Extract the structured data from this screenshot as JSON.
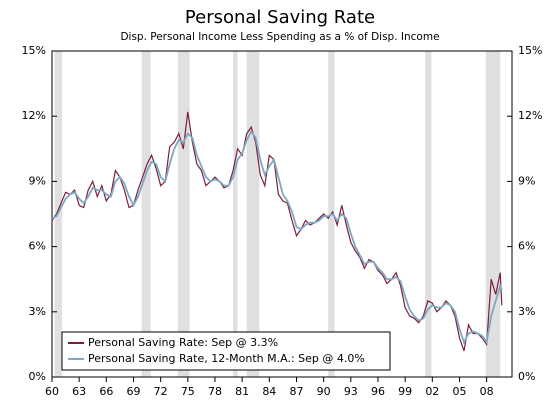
{
  "chart_data": {
    "type": "line",
    "title": "Personal Saving Rate",
    "subtitle": "Disp. Personal Income Less Spending as a % of Disp. Income",
    "x": [
      1960,
      1960.5,
      1961,
      1961.5,
      1962,
      1962.5,
      1963,
      1963.5,
      1964,
      1964.5,
      1965,
      1965.5,
      1966,
      1966.5,
      1967,
      1967.5,
      1968,
      1968.5,
      1969,
      1969.5,
      1970,
      1970.5,
      1971,
      1971.5,
      1972,
      1972.5,
      1973,
      1973.5,
      1974,
      1974.5,
      1975,
      1975.5,
      1976,
      1976.5,
      1977,
      1977.5,
      1978,
      1978.5,
      1979,
      1979.5,
      1980,
      1980.5,
      1981,
      1981.5,
      1982,
      1982.5,
      1983,
      1983.5,
      1984,
      1984.5,
      1985,
      1985.5,
      1986,
      1986.5,
      1987,
      1987.5,
      1988,
      1988.5,
      1989,
      1989.5,
      1990,
      1990.5,
      1991,
      1991.5,
      1992,
      1992.5,
      1993,
      1993.5,
      1994,
      1994.5,
      1995,
      1995.5,
      1996,
      1996.5,
      1997,
      1997.5,
      1998,
      1998.5,
      1999,
      1999.5,
      2000,
      2000.5,
      2001,
      2001.5,
      2002,
      2002.5,
      2003,
      2003.5,
      2004,
      2004.5,
      2005,
      2005.5,
      2006,
      2006.5,
      2007,
      2007.5,
      2008,
      2008.5,
      2009,
      2009.5,
      2009.67
    ],
    "series": [
      {
        "name": "Personal Saving Rate: Sep @ 3.3%",
        "color": "#7a1f3d",
        "values": [
          7.2,
          7.5,
          8.0,
          8.5,
          8.4,
          8.6,
          7.9,
          7.8,
          8.6,
          9.0,
          8.3,
          8.8,
          8.1,
          8.4,
          9.5,
          9.2,
          8.6,
          7.8,
          7.9,
          8.6,
          9.2,
          9.8,
          10.2,
          9.6,
          8.8,
          9.0,
          10.6,
          10.8,
          11.2,
          10.5,
          12.2,
          10.8,
          9.8,
          9.5,
          8.8,
          9.0,
          9.2,
          9.0,
          8.7,
          8.8,
          9.5,
          10.5,
          10.2,
          11.2,
          11.5,
          10.8,
          9.3,
          8.8,
          10.2,
          10.0,
          8.4,
          8.1,
          8.0,
          7.2,
          6.5,
          6.8,
          7.2,
          7.0,
          7.1,
          7.3,
          7.5,
          7.3,
          7.6,
          7.0,
          7.9,
          7.0,
          6.2,
          5.8,
          5.5,
          5.0,
          5.4,
          5.3,
          4.9,
          4.7,
          4.3,
          4.5,
          4.8,
          4.2,
          3.2,
          2.8,
          2.7,
          2.5,
          2.8,
          3.5,
          3.4,
          3.0,
          3.2,
          3.5,
          3.3,
          2.8,
          1.8,
          1.2,
          2.4,
          2.0,
          2.0,
          1.8,
          1.5,
          4.5,
          3.8,
          4.8,
          3.3
        ]
      },
      {
        "name": "Personal Saving Rate, 12-Month M.A.: Sep @ 4.0%",
        "color": "#7fa7c0",
        "values": [
          7.3,
          7.4,
          7.8,
          8.2,
          8.4,
          8.5,
          8.2,
          8.0,
          8.3,
          8.7,
          8.6,
          8.6,
          8.4,
          8.3,
          9.0,
          9.2,
          8.9,
          8.3,
          7.9,
          8.3,
          8.9,
          9.5,
          9.9,
          9.8,
          9.2,
          9.0,
          9.8,
          10.5,
          10.9,
          10.8,
          11.2,
          11.0,
          10.2,
          9.7,
          9.2,
          9.0,
          9.1,
          9.0,
          8.8,
          8.8,
          9.2,
          10.0,
          10.3,
          10.9,
          11.3,
          11.0,
          10.0,
          9.3,
          9.7,
          10.0,
          9.2,
          8.4,
          8.1,
          7.6,
          6.9,
          6.8,
          7.0,
          7.1,
          7.1,
          7.2,
          7.4,
          7.4,
          7.5,
          7.2,
          7.5,
          7.3,
          6.6,
          6.0,
          5.6,
          5.2,
          5.3,
          5.3,
          5.0,
          4.8,
          4.5,
          4.5,
          4.6,
          4.4,
          3.7,
          3.1,
          2.8,
          2.6,
          2.7,
          3.1,
          3.3,
          3.2,
          3.2,
          3.4,
          3.3,
          3.0,
          2.2,
          1.6,
          2.0,
          2.1,
          2.0,
          1.9,
          1.6,
          2.8,
          3.5,
          4.2,
          4.0
        ]
      }
    ],
    "recessions": [
      [
        1960.3,
        1961.1
      ],
      [
        1969.9,
        1970.9
      ],
      [
        1973.9,
        1975.2
      ],
      [
        1980.0,
        1980.5
      ],
      [
        1981.5,
        1982.9
      ],
      [
        1990.5,
        1991.2
      ],
      [
        2001.2,
        2001.9
      ],
      [
        2007.9,
        2009.5
      ]
    ],
    "recession_color": "#e0e0e0",
    "xlim": [
      1960,
      2010.8
    ],
    "xticks": [
      {
        "value": 1960,
        "label": "60"
      },
      {
        "value": 1963,
        "label": "63"
      },
      {
        "value": 1966,
        "label": "66"
      },
      {
        "value": 1969,
        "label": "69"
      },
      {
        "value": 1972,
        "label": "72"
      },
      {
        "value": 1975,
        "label": "75"
      },
      {
        "value": 1978,
        "label": "78"
      },
      {
        "value": 1981,
        "label": "81"
      },
      {
        "value": 1984,
        "label": "84"
      },
      {
        "value": 1987,
        "label": "87"
      },
      {
        "value": 1990,
        "label": "90"
      },
      {
        "value": 1993,
        "label": "93"
      },
      {
        "value": 1996,
        "label": "96"
      },
      {
        "value": 1999,
        "label": "99"
      },
      {
        "value": 2002,
        "label": "02"
      },
      {
        "value": 2005,
        "label": "05"
      },
      {
        "value": 2008,
        "label": "08"
      }
    ],
    "ylim": [
      0,
      15
    ],
    "yticks": [
      {
        "value": 0,
        "label": "0%"
      },
      {
        "value": 3,
        "label": "3%"
      },
      {
        "value": 6,
        "label": "6%"
      },
      {
        "value": 9,
        "label": "9%"
      },
      {
        "value": 12,
        "label": "12%"
      },
      {
        "value": 15,
        "label": "15%"
      }
    ],
    "y2lim": [
      0,
      15
    ],
    "y2ticks": [
      {
        "value": 0,
        "label": "0%"
      },
      {
        "value": 3,
        "label": "3%"
      },
      {
        "value": 6,
        "label": "6%"
      },
      {
        "value": 9,
        "label": "9%"
      },
      {
        "value": 12,
        "label": "12%"
      },
      {
        "value": 15,
        "label": "15%"
      }
    ],
    "grid": false,
    "legend": "lower left"
  }
}
